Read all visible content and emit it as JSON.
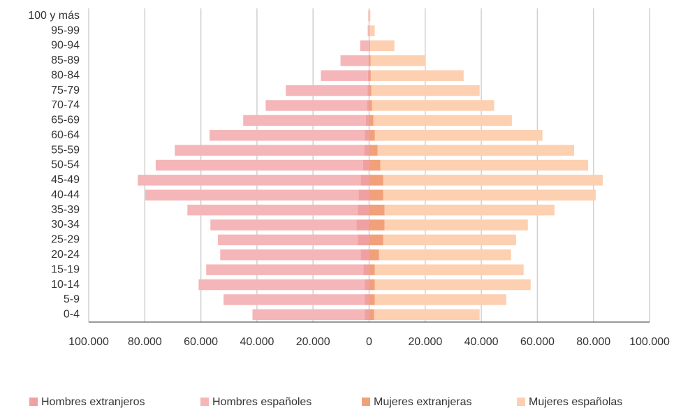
{
  "chart_data": {
    "type": "pyramid",
    "categories": [
      "100 y más",
      "95-99",
      "90-94",
      "85-89",
      "80-84",
      "75-79",
      "70-74",
      "65-69",
      "60-64",
      "55-59",
      "50-54",
      "45-49",
      "40-44",
      "35-39",
      "30-34",
      "25-29",
      "20-24",
      "15-19",
      "10-14",
      "5-9",
      "0-4"
    ],
    "series": [
      {
        "name": "Hombres extranjeros",
        "color": "#f0a0a0",
        "values": [
          -50,
          -100,
          -150,
          -300,
          -400,
          -600,
          -800,
          -1200,
          -1500,
          -1800,
          -2200,
          -3000,
          -3800,
          -4000,
          -4500,
          -4000,
          -3000,
          -2000,
          -1500,
          -1500,
          -1500
        ]
      },
      {
        "name": "Hombres españoles",
        "color": "#f4b6b8",
        "values": [
          -250,
          -400,
          -3050,
          -9900,
          -16800,
          -29100,
          -36100,
          -43700,
          -55400,
          -67500,
          -73900,
          -79500,
          -76000,
          -60800,
          -52100,
          -49900,
          -50100,
          -56100,
          -59300,
          -50400,
          -40100
        ]
      },
      {
        "name": "Mujeres extranjeras",
        "color": "#f2a07a",
        "values": [
          50,
          100,
          300,
          500,
          600,
          800,
          1000,
          1500,
          2000,
          3000,
          4000,
          5000,
          5000,
          5500,
          5500,
          5000,
          3500,
          2000,
          2000,
          2000,
          1800
        ]
      },
      {
        "name": "Mujeres españolas",
        "color": "#fcd0b0",
        "values": [
          400,
          1900,
          8700,
          19700,
          33100,
          38600,
          43600,
          49400,
          59800,
          70100,
          74100,
          78300,
          75800,
          60600,
          51100,
          47400,
          47100,
          53100,
          55600,
          46900,
          37600
        ]
      }
    ],
    "xlim": [
      -100000,
      100000
    ],
    "xticks": [
      {
        "value": -100000,
        "label": "100.000"
      },
      {
        "value": -80000,
        "label": "80.000"
      },
      {
        "value": -60000,
        "label": "60.000"
      },
      {
        "value": -40000,
        "label": "40.000"
      },
      {
        "value": -20000,
        "label": "20.000"
      },
      0,
      {
        "value": 20000,
        "label": "20.000"
      },
      {
        "value": 40000,
        "label": "40.000"
      },
      {
        "value": 60000,
        "label": "60.000"
      },
      {
        "value": 80000,
        "label": "80.000"
      },
      {
        "value": 100000,
        "label": "100.000"
      }
    ],
    "grid": true
  }
}
